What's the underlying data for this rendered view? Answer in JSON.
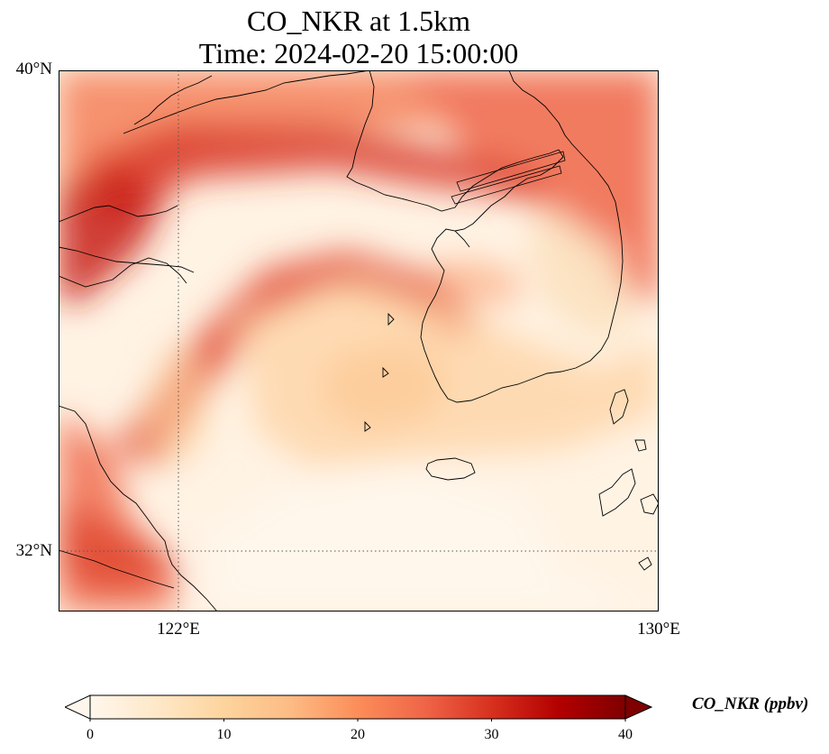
{
  "title": {
    "line1": "CO_NKR at 1.5km",
    "line2": "Time: 2024-02-20 15:00:00"
  },
  "map": {
    "variable": "CO_NKR",
    "level": "1.5km",
    "projection": "plate-carree",
    "extent": {
      "lon_min": 120.0,
      "lon_max": 130.0,
      "lat_min": 31.0,
      "lat_max": 40.0
    },
    "lat_ticks": [
      {
        "value": 40,
        "label": "40°N"
      },
      {
        "value": 32,
        "label": "32°N"
      }
    ],
    "lon_ticks": [
      {
        "value": 122,
        "label": "122°E"
      },
      {
        "value": 130,
        "label": "130°E"
      }
    ],
    "gridlines": {
      "lon": [
        122
      ],
      "lat": [
        32
      ],
      "style": "dotted"
    }
  },
  "colorbar": {
    "label": "CO_NKR (ppbv)",
    "colormap": "OrRd",
    "min": 0,
    "max": 40,
    "extend": "both",
    "ticks": [
      0,
      10,
      20,
      30,
      40
    ],
    "tick_labels": [
      "0",
      "10",
      "20",
      "30",
      "40"
    ],
    "colors": [
      "#fff7ec",
      "#fee8c8",
      "#fdd49e",
      "#fdbb84",
      "#fc8d59",
      "#ef6548",
      "#d7301f",
      "#b30000",
      "#7f0000"
    ]
  }
}
